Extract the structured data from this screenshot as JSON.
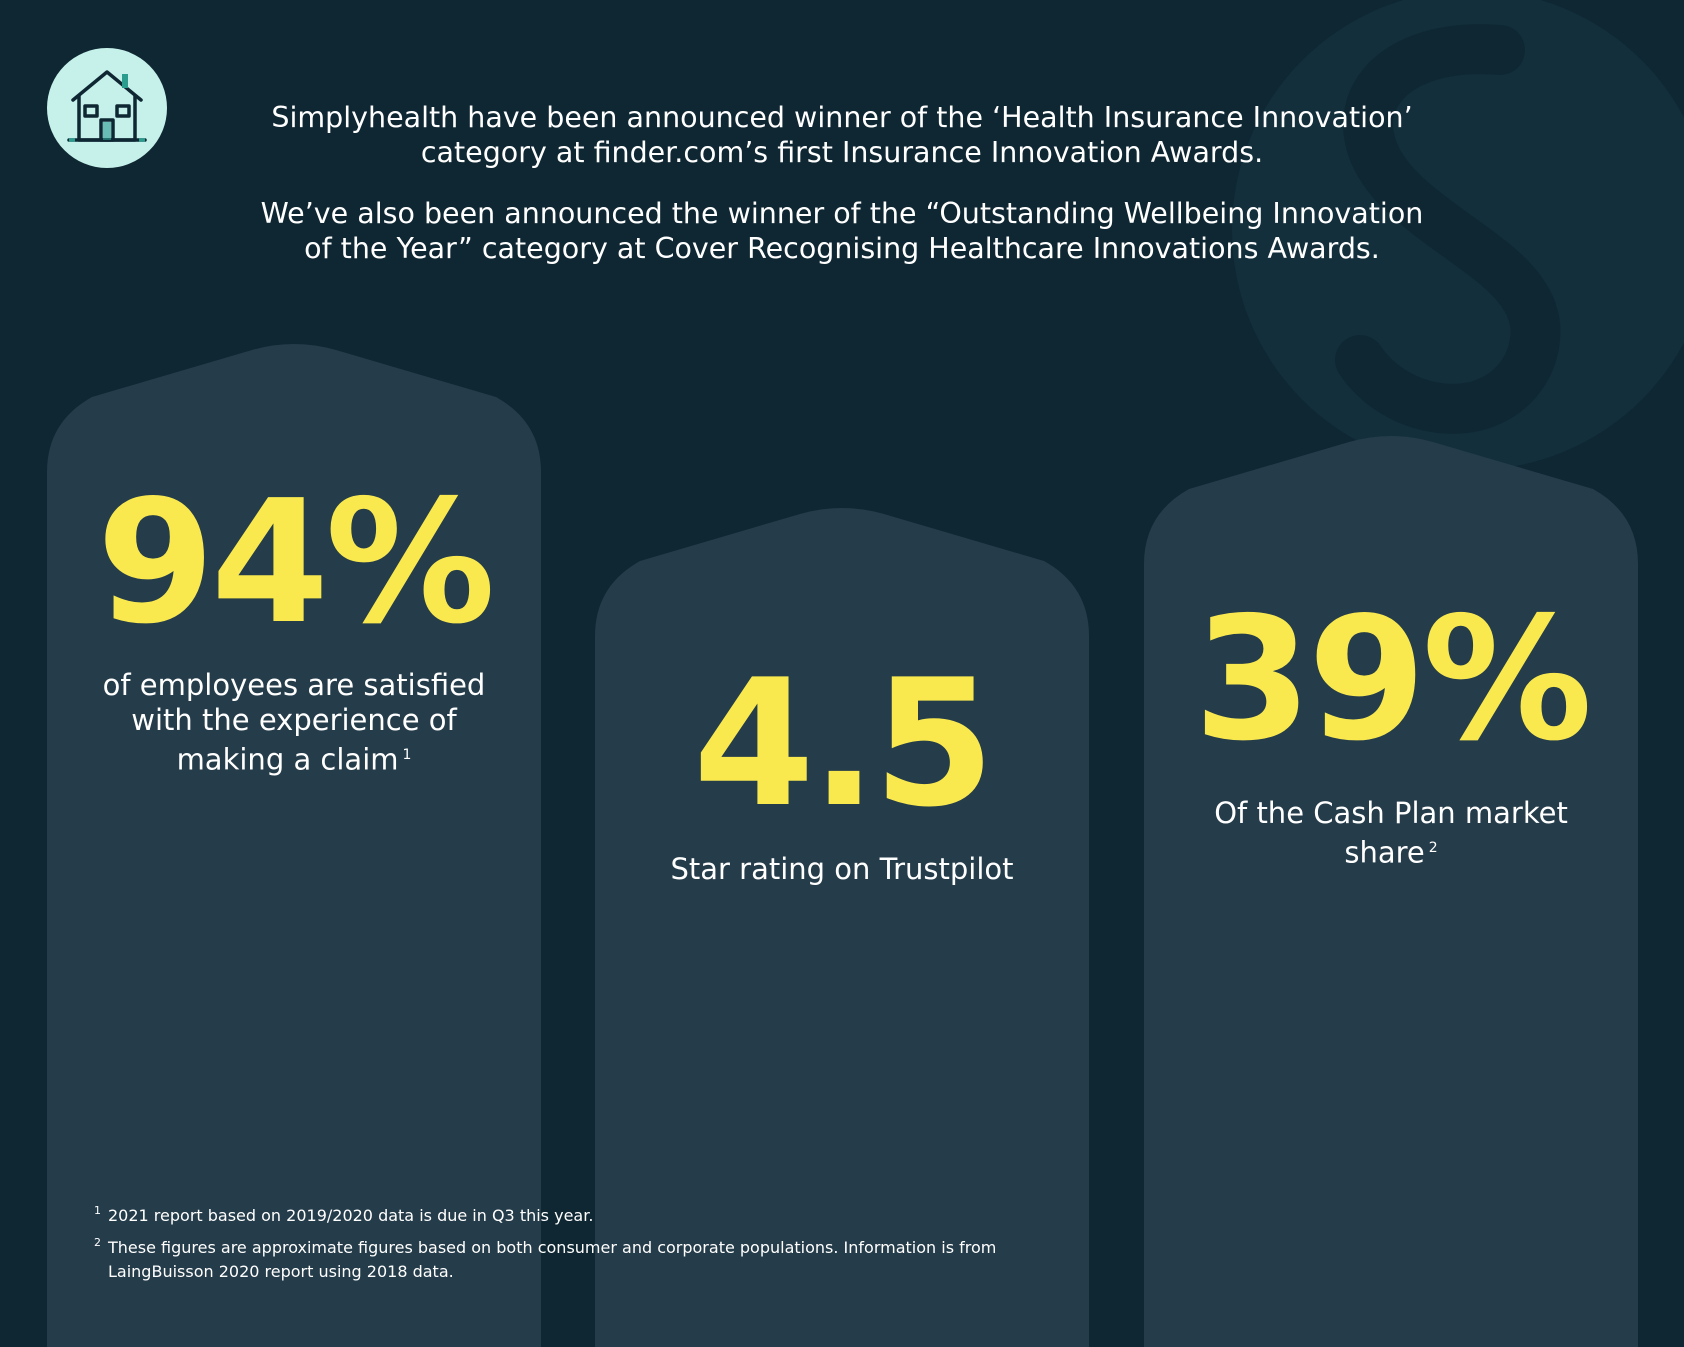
{
  "intro": {
    "paragraph_1": "Simplyhealth have been announced winner of the ‘Health Insurance Innovation’\ncategory at finder.com’s first Insurance Innovation Awards.",
    "paragraph_2": "We’ve also been announced the winner of the “Outstanding Wellbeing Innovation\nof the Year” category at Cover Recognising Healthcare Innovations Awards."
  },
  "stats": [
    {
      "value": "94%",
      "label": "of employees are satisfied with the experience of making a claim",
      "footnote_ref": "1"
    },
    {
      "value": "4.5",
      "label": "Star rating on Trustpilot",
      "footnote_ref": ""
    },
    {
      "value": "39%",
      "label": "Of the Cash Plan market share",
      "footnote_ref": "2"
    }
  ],
  "footnotes": [
    {
      "mark": "1",
      "text": "2021 report based on 2019/2020 data is due in Q3 this year."
    },
    {
      "mark": "2",
      "text": "These figures are approximate figures based on both consumer and corporate populations. Information is from LaingBuisson 2020 report using 2018 data."
    }
  ],
  "icons": {
    "badge": "house-icon",
    "watermark": "brand-s-logo-icon"
  },
  "colors": {
    "background": "#0f2733",
    "pillar": "#253c4a",
    "accent": "#f9e94f",
    "badge": "#c5f1ea",
    "text": "#ffffff"
  }
}
